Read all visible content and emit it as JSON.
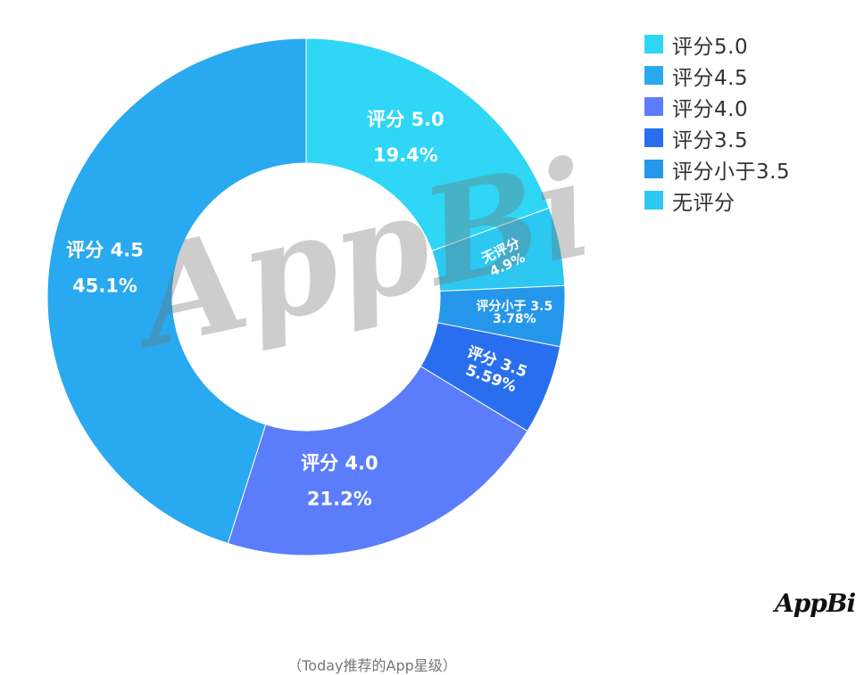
{
  "chart_data": {
    "type": "pie",
    "style": "donut",
    "caption": "（Today推荐的App星级）",
    "slices": [
      {
        "legend": "评分5.0",
        "label": "评分 5.0",
        "pct_text": "19.4%",
        "value": 19.4,
        "color": "#2fd6f5"
      },
      {
        "legend": "无评分",
        "label": "无评分",
        "pct_text": "4.9%",
        "value": 4.9,
        "color": "#2cc8f2"
      },
      {
        "legend": "评分小于3.5",
        "label": "评分小于 3.5",
        "pct_text": "3.78%",
        "value": 3.78,
        "color": "#2597ea"
      },
      {
        "legend": "评分3.5",
        "label": "评分 3.5",
        "pct_text": "5.59%",
        "value": 5.59,
        "color": "#2a6ef0"
      },
      {
        "legend": "评分4.0",
        "label": "评分 4.0",
        "pct_text": "21.2%",
        "value": 21.2,
        "color": "#5b7dfb"
      },
      {
        "legend": "评分4.5",
        "label": "评分 4.5",
        "pct_text": "45.1%",
        "value": 45.1,
        "color": "#29a9ef"
      }
    ],
    "legend_order": [
      "评分5.0",
      "评分4.5",
      "评分4.0",
      "评分3.5",
      "评分小于3.5",
      "无评分"
    ],
    "legend_position": "top-right"
  },
  "watermark": "AppBi",
  "logo": "AppBi"
}
